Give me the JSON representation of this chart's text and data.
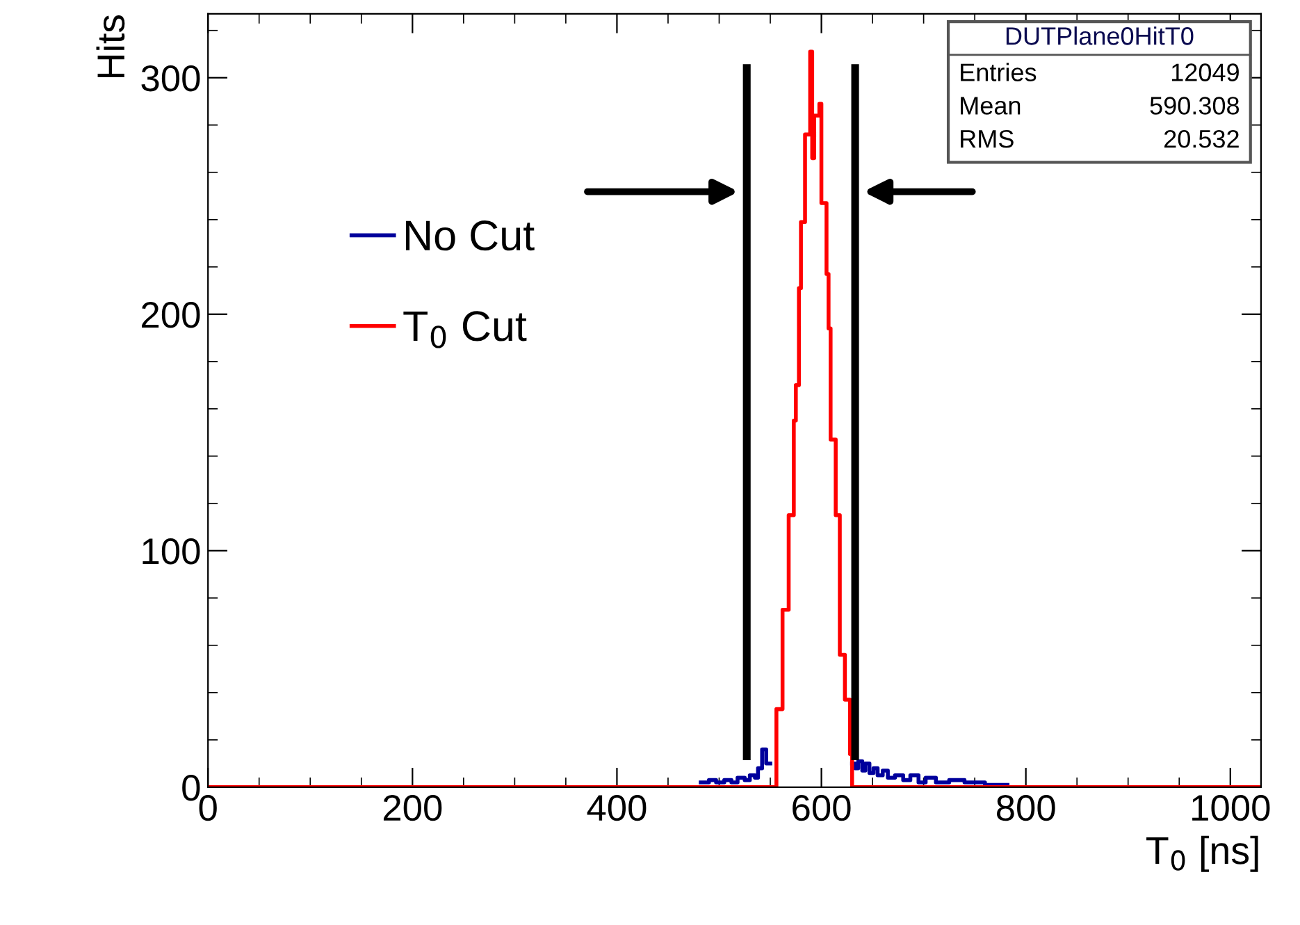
{
  "chart_data": {
    "type": "step",
    "xlabel": "T$_{0}$ [ns]",
    "ylabel": "Hits",
    "xlim": [
      0,
      1030
    ],
    "ylim": [
      0,
      327
    ],
    "xticks": [
      0,
      200,
      400,
      600,
      800,
      1000
    ],
    "yticks": [
      0,
      100,
      200,
      300
    ],
    "legend": "left",
    "grid": false,
    "series": [
      {
        "name": "No Cut",
        "color": "#00009c",
        "x": [
          482,
          490,
          497,
          505,
          512,
          518,
          525,
          530,
          535,
          538,
          542,
          546,
          550,
          630,
          633,
          636,
          640,
          643,
          647,
          651,
          655,
          660,
          665,
          672,
          680,
          687,
          695,
          702,
          712,
          725,
          740,
          760,
          782
        ],
        "values": [
          2,
          3,
          2,
          3,
          2,
          4,
          3,
          5,
          4,
          8,
          16,
          10,
          null,
          10,
          8,
          11,
          7,
          10,
          6,
          8,
          5,
          7,
          4,
          5,
          3,
          5,
          2,
          4,
          2,
          3,
          2,
          1,
          1
        ]
      },
      {
        "name": "T$_{0}$ Cut",
        "color": "#ff0000",
        "x": [
          0,
          550,
          556,
          562,
          568,
          573,
          575,
          578,
          580,
          584,
          589,
          591,
          593,
          598,
          600,
          605,
          607,
          609,
          614,
          618,
          623,
          628,
          630,
          1030
        ],
        "values": [
          0,
          0,
          33,
          75,
          115,
          155,
          170,
          211,
          239,
          276,
          311,
          266,
          284,
          289,
          247,
          217,
          194,
          147,
          115,
          56,
          37,
          14,
          0,
          0
        ]
      }
    ],
    "ref_lines": [
      {
        "axis": "x",
        "value": 527,
        "color": "#000000"
      },
      {
        "axis": "x",
        "value": 633,
        "color": "#000000"
      }
    ],
    "annotations": [
      "DUTPlane0HitT0",
      "Entries",
      "12049",
      "Mean",
      "590.308",
      "RMS",
      "20.532"
    ]
  }
}
